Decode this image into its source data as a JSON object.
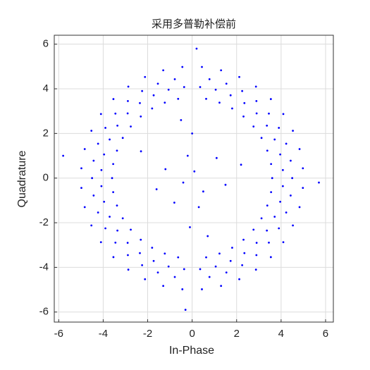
{
  "chart_data": {
    "type": "scatter",
    "title": "采用多普勒补偿前",
    "xlabel": "In-Phase",
    "ylabel": "Quadrature",
    "color": "#0000ff",
    "grid": true,
    "xlim": [
      -6.2,
      6.35
    ],
    "ylim": [
      -6.45,
      6.4
    ],
    "xticks": [
      -6,
      -4,
      -2,
      0,
      2,
      4,
      6
    ],
    "yticks": [
      -6,
      -4,
      -2,
      0,
      2,
      4,
      6
    ],
    "x": [
      3.6,
      3.55,
      3.38,
      3.12,
      2.76,
      2.31,
      1.8,
      1.23,
      0.63,
      4.5,
      4.43,
      4.23,
      3.9,
      3.45,
      2.89,
      2.25,
      1.54,
      0.78,
      4.08,
      3.96,
      3.71,
      3.36,
      2.9,
      2.35,
      1.73,
      1.06,
      0.36,
      4.98,
      4.83,
      4.53,
      4.1,
      3.54,
      2.87,
      2.12,
      1.3,
      0.44,
      -3.6,
      -3.55,
      -3.38,
      -3.12,
      -2.76,
      -2.31,
      -1.8,
      -1.23,
      -0.63,
      -4.5,
      -4.43,
      -4.23,
      -3.9,
      -3.45,
      -2.89,
      -2.25,
      -1.54,
      -0.78,
      -4.08,
      -3.96,
      -3.71,
      -3.36,
      -2.9,
      -2.35,
      -1.73,
      -1.06,
      -0.36,
      -4.98,
      -4.83,
      -4.53,
      -4.1,
      -3.54,
      -2.87,
      -2.12,
      -1.3,
      -0.44,
      -3.55,
      -3.38,
      -3.12,
      -2.76,
      -2.31,
      -1.8,
      -1.23,
      -0.63,
      -4.43,
      -4.23,
      -3.9,
      -3.45,
      -2.89,
      -2.25,
      -1.54,
      -0.78,
      -4.08,
      -3.96,
      -3.71,
      -3.36,
      -2.9,
      -2.35,
      -1.73,
      -1.06,
      -0.36,
      -4.98,
      -4.83,
      -4.53,
      -4.1,
      -3.54,
      -2.87,
      -2.12,
      -1.3,
      -0.44,
      3.55,
      3.38,
      3.12,
      2.76,
      2.31,
      1.8,
      1.23,
      0.63,
      4.43,
      4.23,
      3.9,
      3.45,
      2.89,
      2.25,
      1.54,
      0.78,
      4.08,
      3.96,
      3.71,
      3.36,
      2.9,
      2.35,
      1.73,
      1.06,
      0.36,
      4.98,
      4.83,
      4.53,
      4.1,
      3.54,
      2.87,
      2.12,
      1.3,
      0.44,
      0.1,
      -0.4,
      0.5,
      -0.2,
      0.3,
      -1.2,
      1.1,
      -0.8,
      0,
      -0.1,
      1.5,
      -1.6,
      2.2,
      -2.3,
      0.7,
      -0.5,
      5.7,
      -5.8,
      0.2,
      -0.3
    ],
    "values": [
      0,
      0.63,
      1.23,
      1.8,
      2.31,
      2.76,
      3.12,
      3.38,
      3.55,
      0,
      0.78,
      1.54,
      2.25,
      2.89,
      3.45,
      3.9,
      4.23,
      4.43,
      0.36,
      1.06,
      1.73,
      2.35,
      2.9,
      3.36,
      3.71,
      3.96,
      4.08,
      0.44,
      1.3,
      2.12,
      2.87,
      3.54,
      4.1,
      4.53,
      4.83,
      4.98,
      0,
      0.63,
      1.23,
      1.8,
      2.31,
      2.76,
      3.12,
      3.38,
      3.55,
      0,
      0.78,
      1.54,
      2.25,
      2.89,
      3.45,
      3.9,
      4.23,
      4.43,
      0.36,
      1.06,
      1.73,
      2.35,
      2.9,
      3.36,
      3.71,
      3.96,
      4.08,
      0.44,
      1.3,
      2.12,
      2.87,
      3.54,
      4.1,
      4.53,
      4.83,
      4.98,
      -0.63,
      -1.23,
      -1.8,
      -2.31,
      -2.76,
      -3.12,
      -3.38,
      -3.55,
      -0.78,
      -1.54,
      -2.25,
      -2.89,
      -3.45,
      -3.9,
      -4.23,
      -4.43,
      -0.36,
      -1.06,
      -1.73,
      -2.35,
      -2.9,
      -3.36,
      -3.71,
      -3.96,
      -4.08,
      -0.44,
      -1.3,
      -2.12,
      -2.87,
      -3.54,
      -4.1,
      -4.53,
      -4.83,
      -4.98,
      -0.63,
      -1.23,
      -1.8,
      -2.31,
      -2.76,
      -3.12,
      -3.38,
      -3.55,
      -0.78,
      -1.54,
      -2.25,
      -2.89,
      -3.45,
      -3.9,
      -4.23,
      -4.43,
      -0.36,
      -1.06,
      -1.73,
      -2.35,
      -2.9,
      -3.36,
      -3.71,
      -3.96,
      -4.08,
      -0.44,
      -1.3,
      -2.12,
      -2.87,
      -3.54,
      -4.1,
      -4.53,
      -4.83,
      -4.98,
      0.3,
      -0.2,
      -0.6,
      1.0,
      -1.3,
      0.4,
      0.9,
      -1.1,
      2.0,
      -2.2,
      -0.3,
      -0.5,
      0.6,
      1.2,
      -2.6,
      2.6,
      -0.2,
      1.0,
      5.8,
      -5.9
    ]
  }
}
